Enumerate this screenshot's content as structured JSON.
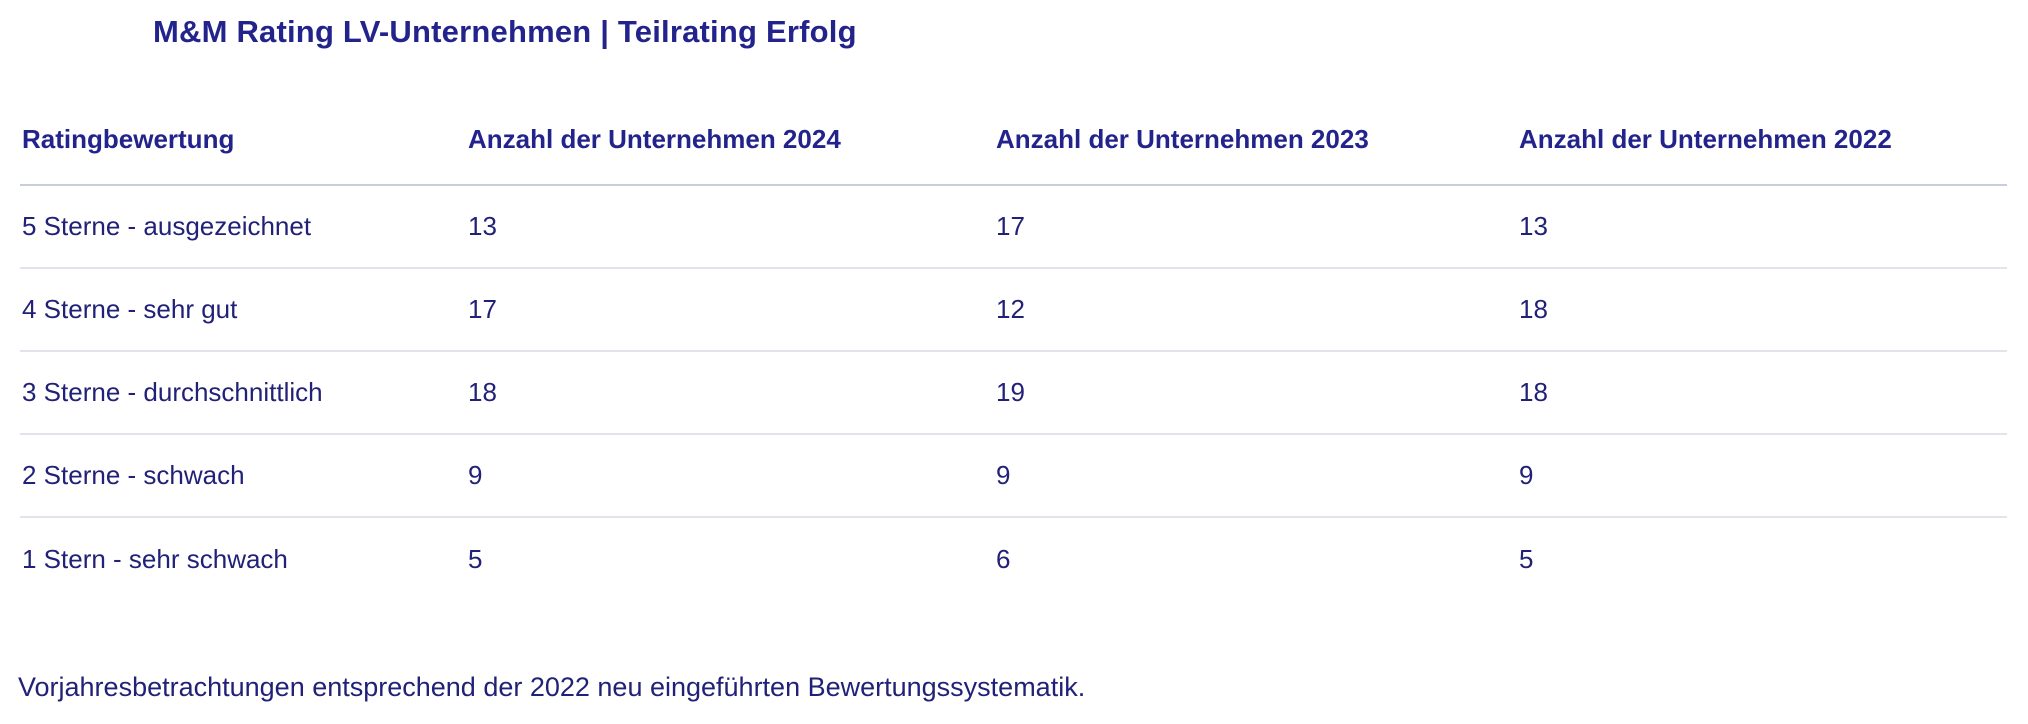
{
  "page": {
    "title": "M&M Rating LV-Unternehmen | Teilrating Erfolg",
    "footnote": "Vorjahresbetrachtungen entsprechend der 2022 neu eingeführten Bewertungssystematik."
  },
  "table": {
    "header": [
      "Ratingbewertung",
      "Anzahl der Unternehmen 2024",
      "Anzahl der Unternehmen 2023",
      "Anzahl der Unternehmen 2022"
    ],
    "rows": [
      [
        "5 Sterne - ausgezeichnet",
        "13",
        "17",
        "13"
      ],
      [
        "4 Sterne - sehr gut",
        "17",
        "12",
        "18"
      ],
      [
        "3 Sterne - durchschnittlich",
        "18",
        "19",
        "18"
      ],
      [
        "2 Sterne - schwach",
        "9",
        "9",
        "9"
      ],
      [
        "1 Stern - sehr schwach",
        "5",
        "6",
        "5"
      ]
    ]
  },
  "chart_data": {
    "type": "table",
    "title": "M&M Rating LV-Unternehmen | Teilrating Erfolg",
    "row_header_label": "Ratingbewertung",
    "categories": [
      "5 Sterne - ausgezeichnet",
      "4 Sterne - sehr gut",
      "3 Sterne - durchschnittlich",
      "2 Sterne - schwach",
      "1 Stern - sehr schwach"
    ],
    "series": [
      {
        "name": "Anzahl der Unternehmen 2024",
        "values": [
          13,
          17,
          18,
          9,
          5
        ]
      },
      {
        "name": "Anzahl der Unternehmen 2023",
        "values": [
          17,
          12,
          19,
          9,
          6
        ]
      },
      {
        "name": "Anzahl der Unternehmen 2022",
        "values": [
          13,
          18,
          18,
          9,
          5
        ]
      }
    ],
    "footnote": "Vorjahresbetrachtungen entsprechend der 2022 neu eingeführten Bewertungssystematik."
  },
  "colors": {
    "title_text": "#23238c",
    "body_text": "#212178",
    "header_rule": "#c7cdda",
    "row_rule": "#e1e4eb",
    "background": "#ffffff"
  }
}
